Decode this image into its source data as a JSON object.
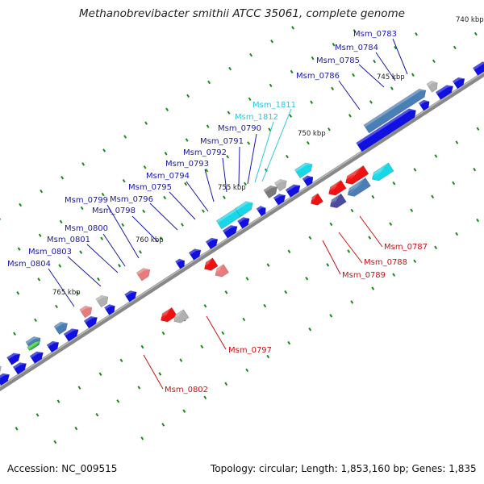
{
  "title": "Methanobrevibacter smithii ATCC 35061, complete genome",
  "footer": {
    "accession": "Accession: NC_009515",
    "summary": "Topology: circular; Length: 1,853,160 bp; Genes: 1,835"
  },
  "colors": {
    "backbone": "#7a7a7a",
    "blue_gene": "#1010e0",
    "steel_gene": "#4a7fb5",
    "red_gene": "#ee1111",
    "pink_gene": "#e87b7b",
    "gray_gene": "#b0b0b0",
    "dark_gray_gene": "#7a7a7a",
    "cyan_gene": "#18d8e8",
    "navy_gene": "#4a4aa0",
    "green_gene": "#33cc33",
    "label_blue": "#1a1aa8",
    "label_cyan": "#28c8e0",
    "label_red": "#d01010",
    "tick_green": "#1a8a1a"
  },
  "ticks": [
    {
      "kbp": "740 kbp"
    },
    {
      "kbp": "745 kbp"
    },
    {
      "kbp": "750 kbp"
    },
    {
      "kbp": "755 kbp"
    },
    {
      "kbp": "760 kbp"
    },
    {
      "kbp": "765 kbp"
    }
  ],
  "genes": {
    "upper": [
      {
        "name": "Msm_0783",
        "color": "label_blue"
      },
      {
        "name": "Msm_0784",
        "color": "label_blue"
      },
      {
        "name": "Msm_0785",
        "color": "label_blue"
      },
      {
        "name": "Msm_0786",
        "color": "label_blue"
      },
      {
        "name": "Msm_1811",
        "color": "label_cyan"
      },
      {
        "name": "Msm_1812",
        "color": "label_cyan"
      },
      {
        "name": "Msm_0790",
        "color": "label_blue"
      },
      {
        "name": "Msm_0791",
        "color": "label_blue"
      },
      {
        "name": "Msm_0792",
        "color": "label_blue"
      },
      {
        "name": "Msm_0793",
        "color": "label_blue"
      },
      {
        "name": "Msm_0794",
        "color": "label_blue"
      },
      {
        "name": "Msm_0795",
        "color": "label_blue"
      },
      {
        "name": "Msm_0796",
        "color": "label_blue"
      },
      {
        "name": "Msm_0799",
        "color": "label_blue"
      },
      {
        "name": "Msm_0798",
        "color": "label_blue"
      },
      {
        "name": "Msm_0800",
        "color": "label_blue"
      },
      {
        "name": "Msm_0801",
        "color": "label_blue"
      },
      {
        "name": "Msm_0803",
        "color": "label_blue"
      },
      {
        "name": "Msm_0804",
        "color": "label_blue"
      }
    ],
    "lower": [
      {
        "name": "Msm_0787",
        "color": "label_red"
      },
      {
        "name": "Msm_0788",
        "color": "label_red"
      },
      {
        "name": "Msm_0789",
        "color": "label_red"
      },
      {
        "name": "Msm_0797",
        "color": "label_red"
      },
      {
        "name": "Msm_0802",
        "color": "label_red"
      }
    ]
  }
}
